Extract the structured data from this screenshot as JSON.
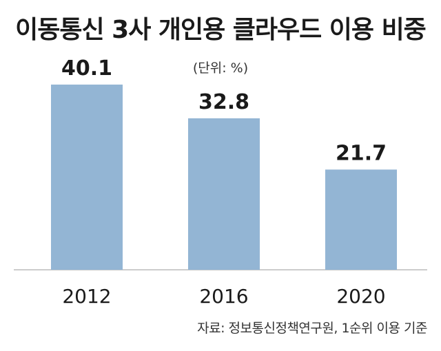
{
  "chart_data": {
    "type": "bar",
    "title": "이동통신 3사 개인용 클라우드 이용 비중",
    "unit_label": "(단위: %)",
    "categories": [
      "2012",
      "2016",
      "2020"
    ],
    "values": [
      40.1,
      32.8,
      21.7
    ],
    "value_labels": [
      "40.1",
      "32.8",
      "21.7"
    ],
    "ylim": [
      0,
      45
    ],
    "grid": false,
    "legend": "none",
    "bar_color": "#93b5d4",
    "source": "자료: 정보통신정책연구원, 1순위 이용 기준"
  }
}
